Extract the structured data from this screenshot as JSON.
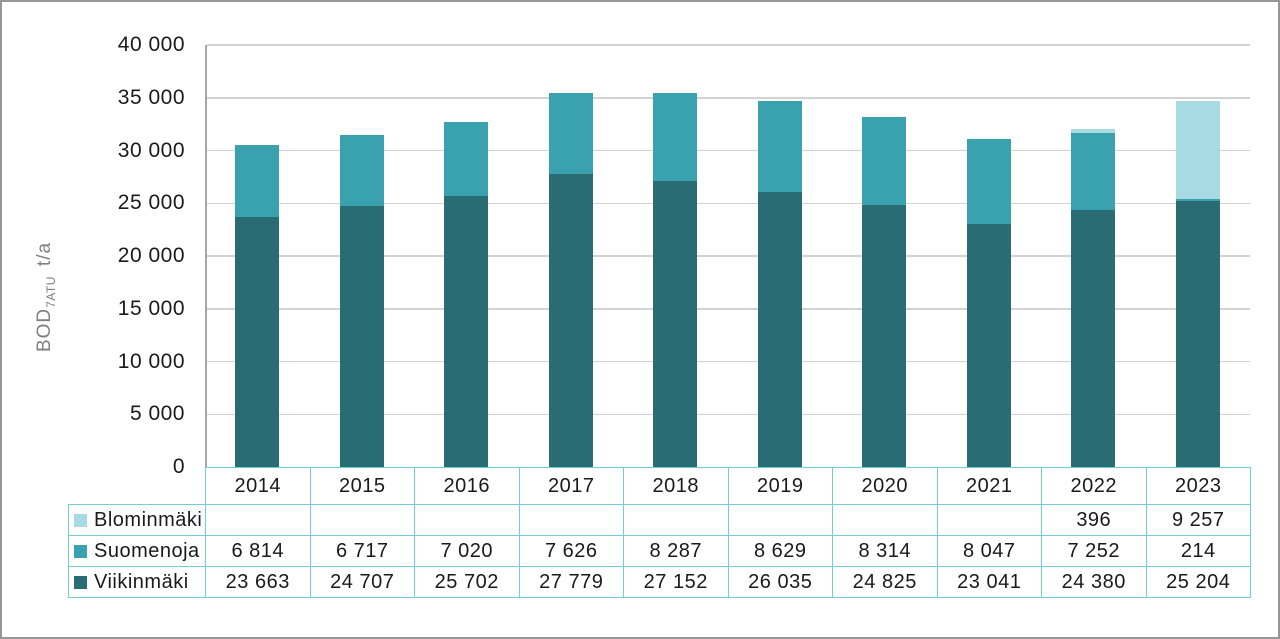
{
  "chart_data": {
    "type": "bar",
    "stacked": true,
    "categories": [
      "2014",
      "2015",
      "2016",
      "2017",
      "2018",
      "2019",
      "2020",
      "2021",
      "2022",
      "2023"
    ],
    "series": [
      {
        "key": "viikinmaki",
        "name": "Viikinmäki",
        "color": "#2A6C74",
        "values": [
          23663,
          24707,
          25702,
          27779,
          27152,
          26035,
          24825,
          23041,
          24380,
          25204
        ]
      },
      {
        "key": "suomenoja",
        "name": "Suomenoja",
        "color": "#3AA2AE",
        "values": [
          6814,
          6717,
          7020,
          7626,
          8287,
          8629,
          8314,
          8047,
          7252,
          214
        ]
      },
      {
        "key": "blominmaki",
        "name": "Blominmäki",
        "color": "#A8DAE3",
        "values": [
          null,
          null,
          null,
          null,
          null,
          null,
          null,
          null,
          396,
          9257
        ]
      }
    ],
    "ylabel_parts": {
      "prefix": "BOD",
      "sub": "7ATU",
      "suffix": "t/a"
    },
    "ylim": [
      0,
      40000
    ],
    "ytick_step": 5000,
    "ytick_labels": [
      "0",
      "5 000",
      "10 000",
      "15 000",
      "20 000",
      "25 000",
      "30 000",
      "35 000",
      "40 000"
    ],
    "grid": true,
    "legend_position": "table-left-of-rows"
  },
  "table": {
    "rows": [
      {
        "key": "blominmaki",
        "label": "Blominmäki",
        "swatch": "#A8DAE3",
        "cells": [
          "",
          "",
          "",
          "",
          "",
          "",
          "",
          "",
          "396",
          "9 257"
        ]
      },
      {
        "key": "suomenoja",
        "label": "Suomenoja",
        "swatch": "#3AA2AE",
        "cells": [
          "6 814",
          "6 717",
          "7 020",
          "7 626",
          "8 287",
          "8 629",
          "8 314",
          "8 047",
          "7 252",
          "214"
        ]
      },
      {
        "key": "viikinmaki",
        "label": "Viikinmäki",
        "swatch": "#2A6C74",
        "cells": [
          "23 663",
          "24 707",
          "25 702",
          "27 779",
          "27 152",
          "26 035",
          "24 825",
          "23 041",
          "24 380",
          "25 204"
        ]
      }
    ]
  },
  "colors": {
    "gridline": "#d2d2d2",
    "axis_line": "#a6a6a6",
    "table_border": "#72cdd9",
    "frame_border": "#979797",
    "y_title": "#7f7f7f",
    "text": "#1a1a1a"
  }
}
